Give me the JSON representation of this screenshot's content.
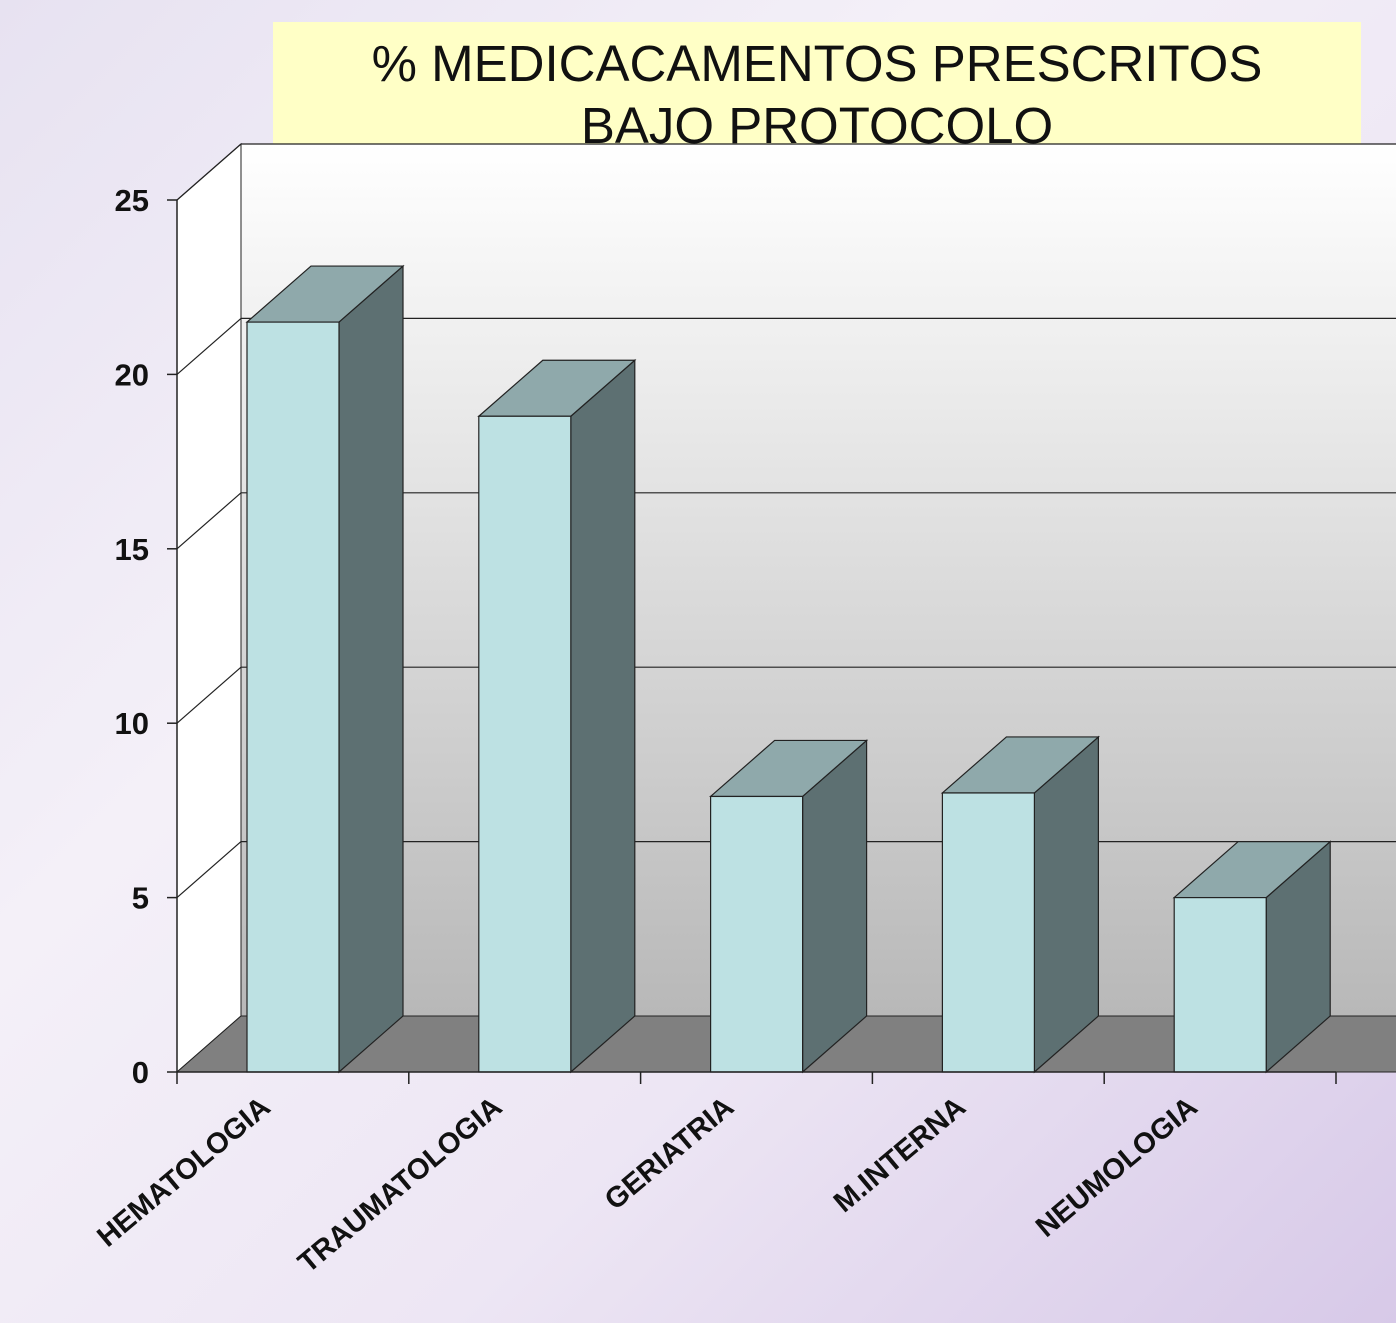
{
  "chart_data": {
    "type": "bar",
    "title_lines": [
      "% MEDICACAMENTOS PRESCRITOS",
      "BAJO PROTOCOLO"
    ],
    "categories": [
      "HEMATOLOGIA",
      "TRAUMATOLOGIA",
      "GERIATRIA",
      "M.INTERNA",
      "NEUMOLOGIA"
    ],
    "values": [
      21.5,
      18.8,
      7.9,
      8.0,
      5.0
    ],
    "ylim": [
      0,
      25
    ],
    "yticks": [
      "0",
      "5",
      "10",
      "15",
      "20",
      "25"
    ],
    "grid": true,
    "style": "3d",
    "colors": {
      "bar_front": "#bde1e3",
      "bar_top": "#8fa9ab",
      "bar_side": "#5d7072",
      "floor": "#808080",
      "wall_top": "#ffffff",
      "wall_bottom": "#b8b8b8",
      "title_bg": "#ffffc6"
    }
  }
}
